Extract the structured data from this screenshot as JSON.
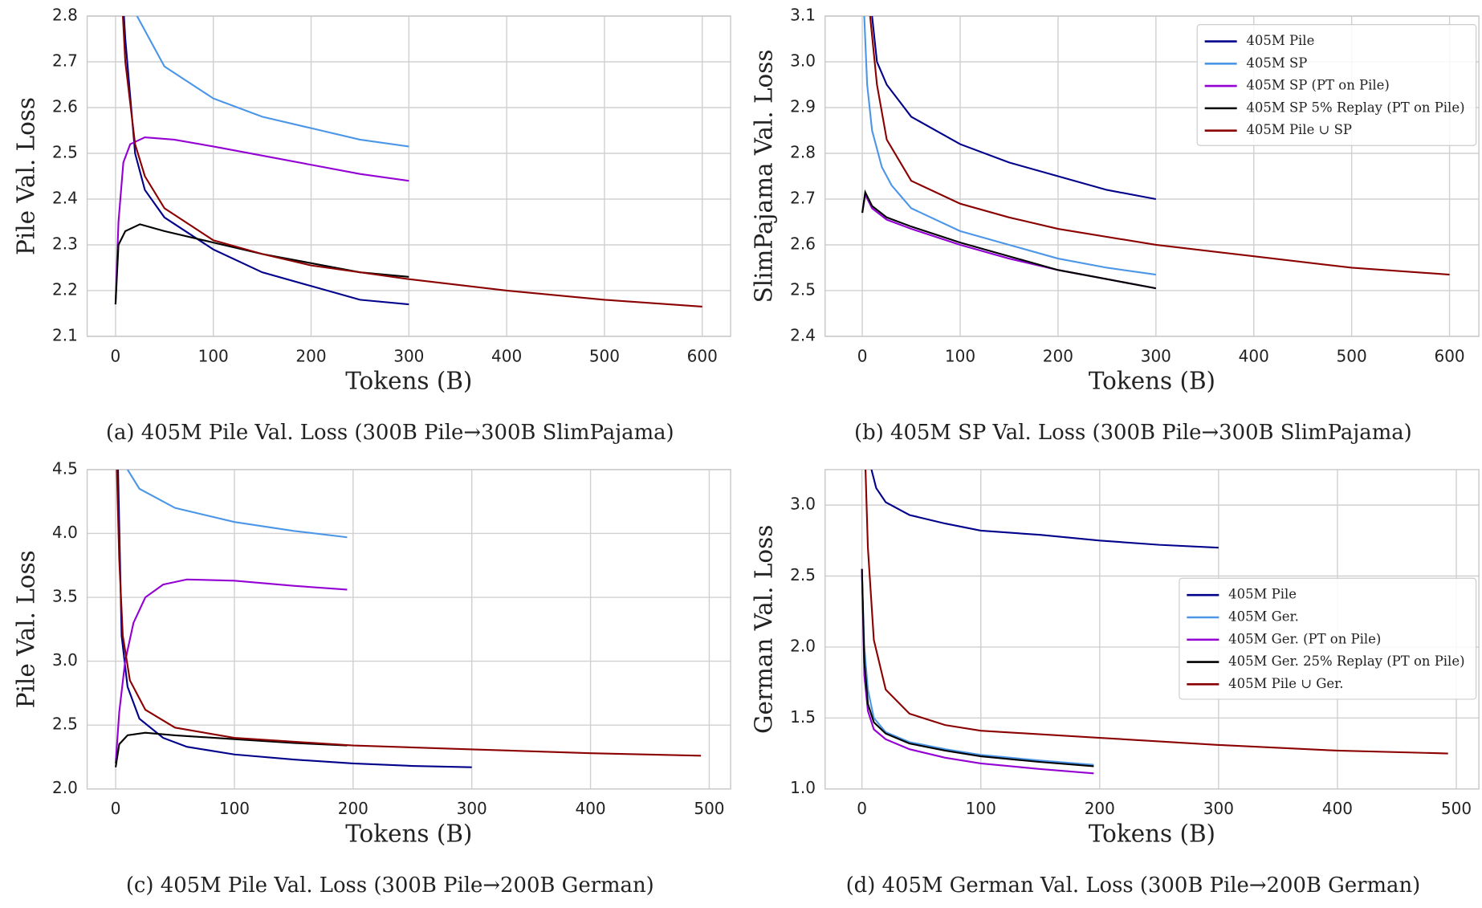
{
  "chart_data": [
    {
      "type": "line",
      "title": "(a) 405M Pile Val. Loss (300B Pile→300B SlimPajama)",
      "xlabel": "Tokens (B)",
      "ylabel": "Pile Val. Loss",
      "xlim": [
        -29,
        629
      ],
      "ylim": [
        2.1,
        2.8
      ],
      "xticks": [
        0,
        100,
        200,
        300,
        400,
        500,
        600
      ],
      "yticks": [
        2.1,
        2.2,
        2.3,
        2.4,
        2.5,
        2.6,
        2.7,
        2.8
      ],
      "grid": true,
      "series": [
        {
          "color": "#00008b",
          "x": [
            3,
            10,
            20,
            30,
            50,
            100,
            150,
            200,
            250,
            300
          ],
          "values": [
            3.0,
            2.75,
            2.5,
            2.42,
            2.36,
            2.29,
            2.24,
            2.21,
            2.18,
            2.17
          ]
        },
        {
          "color": "#4c96e8",
          "x": [
            18,
            22,
            50,
            100,
            150,
            200,
            250,
            300
          ],
          "values": [
            2.85,
            2.8,
            2.69,
            2.62,
            2.58,
            2.555,
            2.53,
            2.515
          ]
        },
        {
          "color": "#9400d3",
          "x": [
            0,
            3,
            8,
            15,
            30,
            60,
            100,
            150,
            200,
            250,
            300
          ],
          "values": [
            2.17,
            2.35,
            2.48,
            2.52,
            2.535,
            2.53,
            2.515,
            2.495,
            2.475,
            2.455,
            2.44
          ]
        },
        {
          "color": "#000000",
          "x": [
            0,
            3,
            10,
            25,
            50,
            100,
            150,
            200,
            250,
            300
          ],
          "values": [
            2.17,
            2.3,
            2.33,
            2.345,
            2.33,
            2.305,
            2.28,
            2.26,
            2.24,
            2.23
          ]
        },
        {
          "color": "#8b0000",
          "x": [
            5,
            10,
            20,
            30,
            50,
            100,
            150,
            200,
            300,
            400,
            500,
            600
          ],
          "values": [
            2.9,
            2.7,
            2.52,
            2.45,
            2.38,
            2.31,
            2.28,
            2.255,
            2.225,
            2.2,
            2.18,
            2.165
          ]
        }
      ]
    },
    {
      "type": "line",
      "title": "(b) 405M SP Val. Loss (300B Pile→300B SlimPajama)",
      "xlabel": "Tokens (B)",
      "ylabel": "SlimPajama Val. Loss",
      "xlim": [
        -38,
        630
      ],
      "ylim": [
        2.4,
        3.1
      ],
      "xticks": [
        0,
        100,
        200,
        300,
        400,
        500,
        600
      ],
      "yticks": [
        2.4,
        2.5,
        2.6,
        2.7,
        2.8,
        2.9,
        {
          "value": 3,
          "label": "3.0"
        },
        3.1
      ],
      "grid": true,
      "legend": "upper right",
      "series": [
        {
          "name": "405M Pile",
          "color": "#00008b",
          "x": [
            10,
            15,
            25,
            50,
            100,
            150,
            200,
            250,
            300
          ],
          "values": [
            3.1,
            3.0,
            2.95,
            2.88,
            2.82,
            2.78,
            2.75,
            2.72,
            2.7
          ]
        },
        {
          "name": "405M SP",
          "color": "#4c96e8",
          "x": [
            2,
            5,
            10,
            20,
            30,
            50,
            100,
            150,
            200,
            250,
            300
          ],
          "values": [
            3.1,
            2.95,
            2.85,
            2.77,
            2.73,
            2.68,
            2.63,
            2.6,
            2.57,
            2.55,
            2.535
          ]
        },
        {
          "name": "405M SP (PT on Pile)",
          "color": "#9400d3",
          "x": [
            0,
            3,
            10,
            25,
            50,
            100,
            150,
            200,
            250,
            300
          ],
          "values": [
            2.67,
            2.71,
            2.68,
            2.655,
            2.635,
            2.6,
            2.57,
            2.545,
            2.525,
            2.505
          ]
        },
        {
          "name": "405M SP 5% Replay (PT on Pile)",
          "color": "#000000",
          "x": [
            0,
            3,
            10,
            25,
            50,
            100,
            150,
            200,
            250,
            300
          ],
          "values": [
            2.67,
            2.715,
            2.685,
            2.66,
            2.64,
            2.605,
            2.575,
            2.545,
            2.525,
            2.505
          ]
        },
        {
          "name": "405M Pile ∪ SP",
          "color": "#8b0000",
          "x": [
            8,
            15,
            25,
            50,
            100,
            150,
            200,
            300,
            400,
            500,
            600
          ],
          "values": [
            3.1,
            2.95,
            2.83,
            2.74,
            2.69,
            2.66,
            2.635,
            2.6,
            2.575,
            2.55,
            2.535
          ]
        }
      ]
    },
    {
      "type": "line",
      "title": "(c) 405M Pile Val. Loss (300B Pile→200B German)",
      "xlabel": "Tokens (B)",
      "ylabel": "Pile Val. Loss",
      "xlim": [
        -24,
        518
      ],
      "ylim": [
        2,
        4.5
      ],
      "xticks": [
        0,
        100,
        200,
        300,
        400,
        500
      ],
      "yticks": [
        {
          "value": 2,
          "label": "2.0"
        },
        2.5,
        {
          "value": 3,
          "label": "3.0"
        },
        3.5,
        {
          "value": 4,
          "label": "4.0"
        },
        4.5
      ],
      "grid": true,
      "series": [
        {
          "color": "#00008b",
          "x": [
            2,
            5,
            10,
            20,
            40,
            60,
            100,
            150,
            200,
            250,
            300
          ],
          "values": [
            4.5,
            3.2,
            2.8,
            2.55,
            2.4,
            2.33,
            2.27,
            2.23,
            2.2,
            2.18,
            2.17
          ]
        },
        {
          "color": "#4c96e8",
          "x": [
            10,
            20,
            50,
            100,
            150,
            195
          ],
          "values": [
            4.5,
            4.35,
            4.2,
            4.09,
            4.02,
            3.97
          ]
        },
        {
          "color": "#9400d3",
          "x": [
            0,
            3,
            8,
            15,
            25,
            40,
            60,
            100,
            150,
            195
          ],
          "values": [
            2.2,
            2.6,
            3.0,
            3.3,
            3.5,
            3.6,
            3.64,
            3.63,
            3.59,
            3.56
          ]
        },
        {
          "color": "#000000",
          "x": [
            0,
            3,
            10,
            25,
            50,
            100,
            150,
            195
          ],
          "values": [
            2.17,
            2.35,
            2.42,
            2.44,
            2.42,
            2.39,
            2.36,
            2.34
          ]
        },
        {
          "color": "#8b0000",
          "x": [
            1,
            3,
            6,
            12,
            25,
            50,
            100,
            200,
            300,
            400,
            493
          ],
          "values": [
            4.5,
            3.8,
            3.2,
            2.85,
            2.62,
            2.48,
            2.4,
            2.34,
            2.31,
            2.28,
            2.26
          ]
        }
      ]
    },
    {
      "type": "line",
      "title": "(d) 405M German Val. Loss (300B Pile→200B German)",
      "xlabel": "Tokens (B)",
      "ylabel": "German Val. Loss",
      "xlim": [
        -31,
        519
      ],
      "ylim": [
        1,
        3.25
      ],
      "xticks": [
        0,
        100,
        200,
        300,
        400,
        500
      ],
      "yticks": [
        {
          "value": 1,
          "label": "1.0"
        },
        1.5,
        {
          "value": 2,
          "label": "2.0"
        },
        2.5,
        {
          "value": 3,
          "label": "3.0"
        }
      ],
      "grid": true,
      "legend": "center right",
      "series": [
        {
          "name": "405M Pile",
          "color": "#00008b",
          "x": [
            8,
            12,
            20,
            40,
            70,
            100,
            150,
            200,
            250,
            300
          ],
          "values": [
            3.25,
            3.12,
            3.02,
            2.93,
            2.87,
            2.82,
            2.79,
            2.75,
            2.72,
            2.7
          ]
        },
        {
          "name": "405M Ger.",
          "color": "#4c96e8",
          "x": [
            0,
            2,
            5,
            10,
            20,
            40,
            70,
            100,
            150,
            195
          ],
          "values": [
            2.5,
            2.0,
            1.7,
            1.5,
            1.4,
            1.33,
            1.28,
            1.24,
            1.2,
            1.17
          ]
        },
        {
          "name": "405M Ger. (PT on Pile)",
          "color": "#9400d3",
          "x": [
            0,
            2,
            5,
            10,
            20,
            40,
            70,
            100,
            150,
            195
          ],
          "values": [
            2.55,
            1.8,
            1.55,
            1.42,
            1.35,
            1.28,
            1.22,
            1.18,
            1.14,
            1.11
          ]
        },
        {
          "name": "405M Ger. 25% Replay (PT on Pile)",
          "color": "#000000",
          "x": [
            0,
            2,
            5,
            10,
            20,
            40,
            70,
            100,
            150,
            195
          ],
          "values": [
            2.55,
            1.9,
            1.6,
            1.47,
            1.39,
            1.32,
            1.27,
            1.23,
            1.19,
            1.16
          ]
        },
        {
          "name": "405M Pile ∪ Ger.",
          "color": "#8b0000",
          "x": [
            3,
            5,
            10,
            20,
            40,
            70,
            100,
            200,
            300,
            400,
            493
          ],
          "values": [
            3.25,
            2.7,
            2.05,
            1.7,
            1.53,
            1.45,
            1.41,
            1.36,
            1.31,
            1.27,
            1.25
          ]
        }
      ]
    }
  ]
}
